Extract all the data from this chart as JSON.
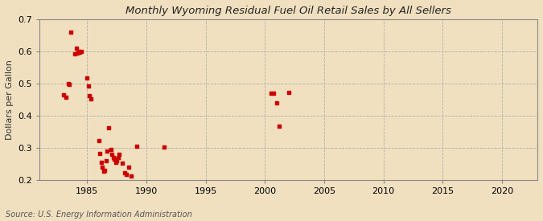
{
  "title": "Monthly Wyoming Residual Fuel Oil Retail Sales by All Sellers",
  "ylabel": "Dollars per Gallon",
  "source": "Source: U.S. Energy Information Administration",
  "background_color": "#f0e0c0",
  "plot_background_color": "#f0e0c0",
  "marker_color": "#cc0000",
  "xlim": [
    1981,
    2023
  ],
  "ylim": [
    0.2,
    0.7
  ],
  "xticks": [
    1985,
    1990,
    1995,
    2000,
    2005,
    2010,
    2015,
    2020
  ],
  "yticks": [
    0.2,
    0.3,
    0.4,
    0.5,
    0.6,
    0.7
  ],
  "data_x": [
    1983.0,
    1983.2,
    1983.4,
    1983.5,
    1983.6,
    1984.0,
    1984.1,
    1984.2,
    1984.3,
    1984.4,
    1984.5,
    1985.0,
    1985.1,
    1985.2,
    1985.3,
    1986.0,
    1986.1,
    1986.2,
    1986.3,
    1986.4,
    1986.5,
    1986.6,
    1986.7,
    1986.8,
    1987.0,
    1987.1,
    1987.2,
    1987.3,
    1987.4,
    1987.5,
    1987.6,
    1987.7,
    1988.0,
    1988.2,
    1988.3,
    1988.5,
    1988.7,
    1989.2,
    1991.5,
    2000.5,
    2000.7,
    2001.0,
    2001.2,
    2002.0
  ],
  "data_y": [
    0.464,
    0.458,
    0.5,
    0.498,
    0.66,
    0.593,
    0.61,
    0.595,
    0.6,
    0.597,
    0.6,
    0.517,
    0.493,
    0.462,
    0.453,
    0.323,
    0.283,
    0.255,
    0.24,
    0.228,
    0.23,
    0.26,
    0.29,
    0.362,
    0.295,
    0.28,
    0.27,
    0.265,
    0.255,
    0.26,
    0.27,
    0.28,
    0.252,
    0.222,
    0.218,
    0.24,
    0.212,
    0.306,
    0.304,
    0.47,
    0.47,
    0.44,
    0.367,
    0.473
  ]
}
